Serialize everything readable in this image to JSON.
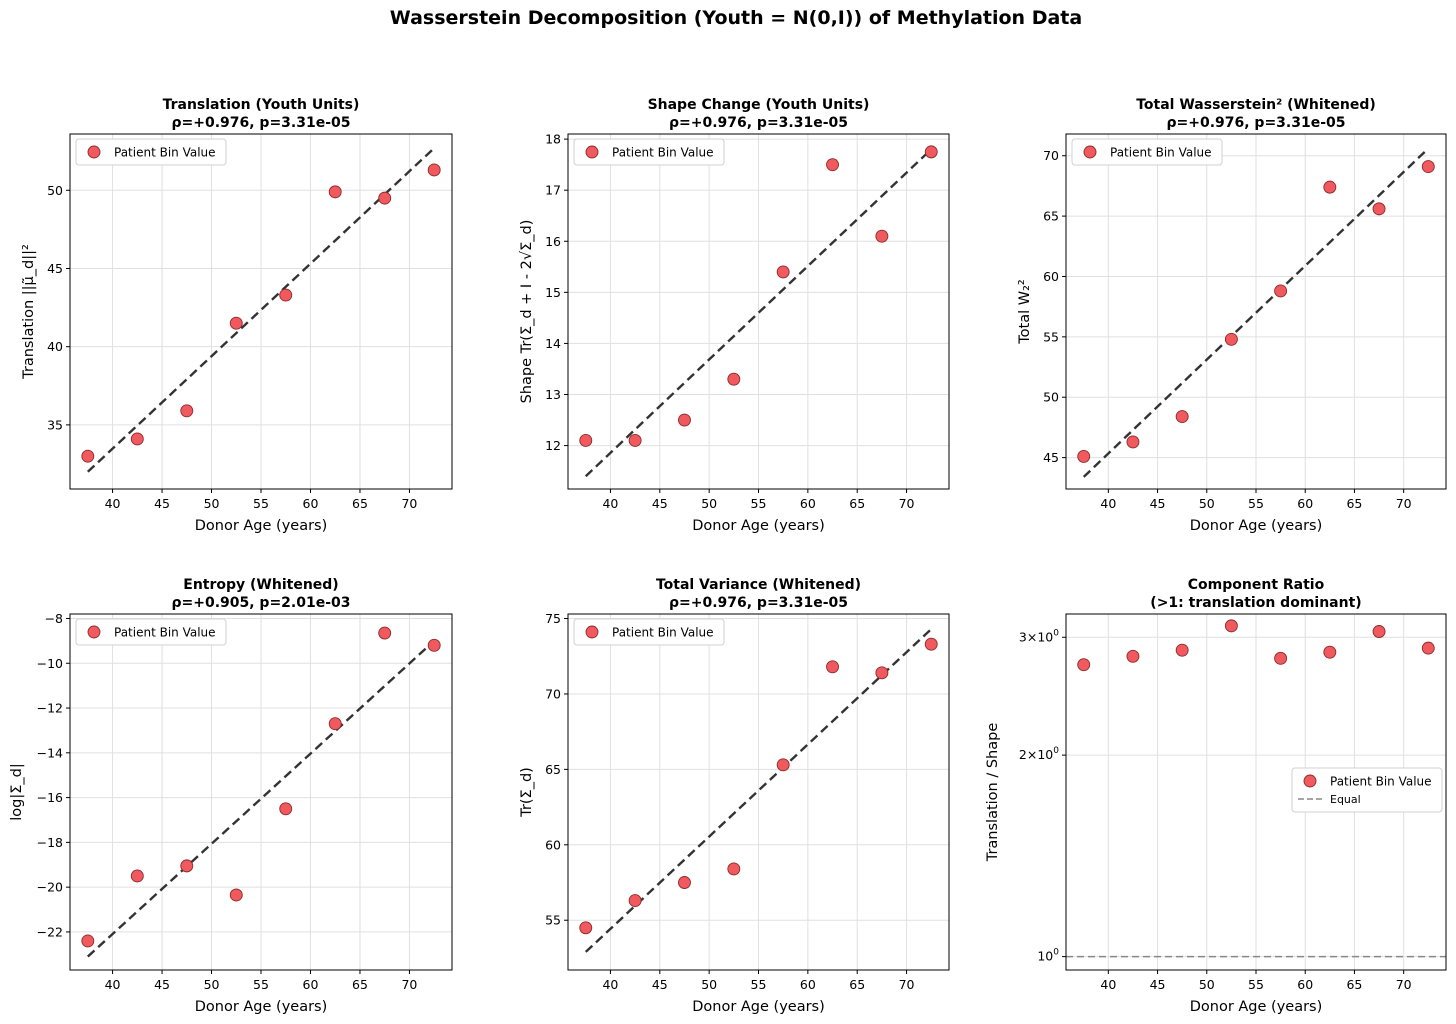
{
  "figure": {
    "title": "Wasserstein Decomposition (Youth = N(0,I)) of Methylation Data"
  },
  "colors": {
    "marker": "#f0595d",
    "marker_edge": "#8a2a2c",
    "fit": "#333333",
    "equal": "#888888",
    "grid": "#e0e0e0"
  },
  "chart_data": [
    {
      "type": "scatter",
      "title_line1": "Translation (Youth Units)",
      "title_line2": "ρ=+0.976, p=3.31e-05",
      "xlabel": "Donor Age (years)",
      "ylabel": "Translation ||μ̃_d||²",
      "x": [
        37.5,
        42.5,
        47.5,
        52.5,
        57.5,
        62.5,
        67.5,
        72.5
      ],
      "y": [
        33.0,
        34.1,
        35.9,
        41.5,
        43.3,
        49.9,
        49.5,
        51.3
      ],
      "fit": {
        "x": [
          37.5,
          72.5
        ],
        "y": [
          32.0,
          52.7
        ]
      },
      "xlim": [
        35.7,
        74.3
      ],
      "ylim": [
        30.9,
        53.6
      ],
      "xticks": [
        40,
        45,
        50,
        55,
        60,
        65,
        70
      ],
      "yticks": [
        35,
        40,
        45,
        50
      ],
      "yscale": "linear",
      "legend": {
        "entries": [
          "Patient Bin Value"
        ],
        "position": "top-left"
      }
    },
    {
      "type": "scatter",
      "title_line1": "Shape Change (Youth Units)",
      "title_line2": "ρ=+0.976, p=3.31e-05",
      "xlabel": "Donor Age (years)",
      "ylabel": "Shape Tr(Σ_d + I - 2√Σ_d)",
      "x": [
        37.5,
        42.5,
        47.5,
        52.5,
        57.5,
        62.5,
        67.5,
        72.5
      ],
      "y": [
        12.1,
        12.1,
        12.5,
        13.3,
        15.4,
        17.5,
        16.1,
        17.75
      ],
      "fit": {
        "x": [
          37.5,
          72.5
        ],
        "y": [
          11.4,
          17.8
        ]
      },
      "xlim": [
        35.7,
        74.3
      ],
      "ylim": [
        11.15,
        18.1
      ],
      "xticks": [
        40,
        45,
        50,
        55,
        60,
        65,
        70
      ],
      "yticks": [
        12,
        13,
        14,
        15,
        16,
        17,
        18
      ],
      "yscale": "linear",
      "legend": {
        "entries": [
          "Patient Bin Value"
        ],
        "position": "top-left"
      }
    },
    {
      "type": "scatter",
      "title_line1": "Total Wasserstein² (Whitened)",
      "title_line2": "ρ=+0.976, p=3.31e-05",
      "xlabel": "Donor Age (years)",
      "ylabel": "Total W₂²",
      "x": [
        37.5,
        42.5,
        47.5,
        52.5,
        57.5,
        62.5,
        67.5,
        72.5
      ],
      "y": [
        45.1,
        46.3,
        48.4,
        54.8,
        58.8,
        67.4,
        65.6,
        69.1
      ],
      "fit": {
        "x": [
          37.5,
          72.5
        ],
        "y": [
          43.4,
          70.6
        ]
      },
      "xlim": [
        35.7,
        74.3
      ],
      "ylim": [
        42.4,
        71.8
      ],
      "xticks": [
        40,
        45,
        50,
        55,
        60,
        65,
        70
      ],
      "yticks": [
        45,
        50,
        55,
        60,
        65,
        70
      ],
      "yscale": "linear",
      "legend": {
        "entries": [
          "Patient Bin Value"
        ],
        "position": "top-left"
      }
    },
    {
      "type": "scatter",
      "title_line1": "Entropy (Whitened)",
      "title_line2": "ρ=+0.905, p=2.01e-03",
      "xlabel": "Donor Age (years)",
      "ylabel": "log|Σ_d|",
      "x": [
        37.5,
        42.5,
        47.5,
        52.5,
        57.5,
        62.5,
        67.5,
        72.5
      ],
      "y": [
        -22.4,
        -19.5,
        -19.05,
        -20.35,
        -16.5,
        -12.7,
        -8.65,
        -9.2
      ],
      "fit": {
        "x": [
          37.5,
          72.5
        ],
        "y": [
          -23.1,
          -9.0
        ]
      },
      "xlim": [
        35.7,
        74.3
      ],
      "ylim": [
        -23.7,
        -7.8
      ],
      "xticks": [
        40,
        45,
        50,
        55,
        60,
        65,
        70
      ],
      "yticks": [
        -22,
        -20,
        -18,
        -16,
        -14,
        -12,
        -10,
        -8
      ],
      "yscale": "linear",
      "legend": {
        "entries": [
          "Patient Bin Value"
        ],
        "position": "top-left"
      }
    },
    {
      "type": "scatter",
      "title_line1": "Total Variance (Whitened)",
      "title_line2": "ρ=+0.976, p=3.31e-05",
      "xlabel": "Donor Age (years)",
      "ylabel": "Tr(Σ_d)",
      "x": [
        37.5,
        42.5,
        47.5,
        52.5,
        57.5,
        62.5,
        67.5,
        72.5
      ],
      "y": [
        54.5,
        56.3,
        57.5,
        58.4,
        65.3,
        71.8,
        71.4,
        73.3
      ],
      "fit": {
        "x": [
          37.5,
          72.5
        ],
        "y": [
          52.9,
          74.3
        ]
      },
      "xlim": [
        35.7,
        74.3
      ],
      "ylim": [
        51.7,
        75.3
      ],
      "xticks": [
        40,
        45,
        50,
        55,
        60,
        65,
        70
      ],
      "yticks": [
        55,
        60,
        65,
        70,
        75
      ],
      "yscale": "linear",
      "legend": {
        "entries": [
          "Patient Bin Value"
        ],
        "position": "top-left"
      }
    },
    {
      "type": "scatter",
      "title_line1": "Component Ratio",
      "title_line2": "(>1: translation dominant)",
      "xlabel": "Donor Age (years)",
      "ylabel": "Translation / Shape",
      "x": [
        37.5,
        42.5,
        47.5,
        52.5,
        57.5,
        62.5,
        67.5,
        72.5
      ],
      "y": [
        2.73,
        2.81,
        2.87,
        3.12,
        2.79,
        2.85,
        3.06,
        2.89
      ],
      "reference_line": {
        "y": 1.0,
        "label": "Equal"
      },
      "xlim": [
        35.7,
        74.3
      ],
      "ylim": [
        0.955,
        3.25
      ],
      "xticks": [
        40,
        45,
        50,
        55,
        60,
        65,
        70
      ],
      "yticks": [
        1,
        2,
        3
      ],
      "ytick_labels": [
        "10^0",
        "2×10^0",
        "3×10^0"
      ],
      "yscale": "log",
      "legend": {
        "entries": [
          "Patient Bin Value",
          "Equal"
        ],
        "position": "center-right"
      }
    }
  ]
}
